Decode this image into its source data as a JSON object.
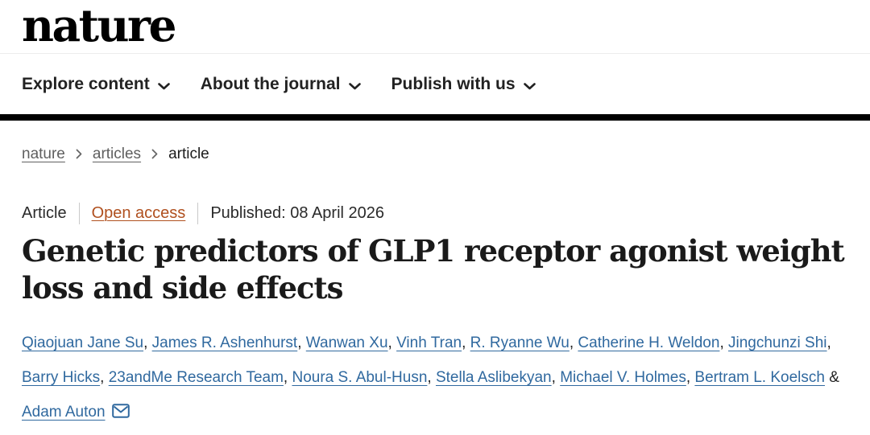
{
  "brand": {
    "logo_text": "nature"
  },
  "nav": {
    "items": [
      {
        "label": "Explore content"
      },
      {
        "label": "About the journal"
      },
      {
        "label": "Publish with us"
      }
    ]
  },
  "breadcrumb": {
    "items": [
      {
        "label": "nature"
      },
      {
        "label": "articles"
      },
      {
        "label": "article"
      }
    ]
  },
  "article": {
    "type_label": "Article",
    "access_label": "Open access",
    "published_text": "Published: 08 April 2026",
    "title": "Genetic predictors of GLP1 receptor agonist weight loss and side effects",
    "authors": [
      "Qiaojuan Jane Su",
      "James R. Ashenhurst",
      "Wanwan Xu",
      "Vinh Tran",
      "R. Ryanne Wu",
      "Catherine H. Weldon",
      "Jingchunzi Shi",
      "Barry Hicks",
      "23andMe Research Team",
      "Noura S. Abul-Husn",
      "Stella Aslibekyan",
      "Michael V. Holmes",
      "Bertram L. Koelsch",
      "Adam Auton"
    ],
    "separator_comma": ", ",
    "separator_amp": " & ",
    "corresponding_author_icon": "envelope-icon"
  },
  "colors": {
    "link_blue": "#30699f",
    "open_access_orange": "#b0501f",
    "text_dark": "#222222",
    "title_black": "#1a1a1a",
    "breadcrumb_gray": "#5f5f5f",
    "header_bar_black": "#000000"
  }
}
